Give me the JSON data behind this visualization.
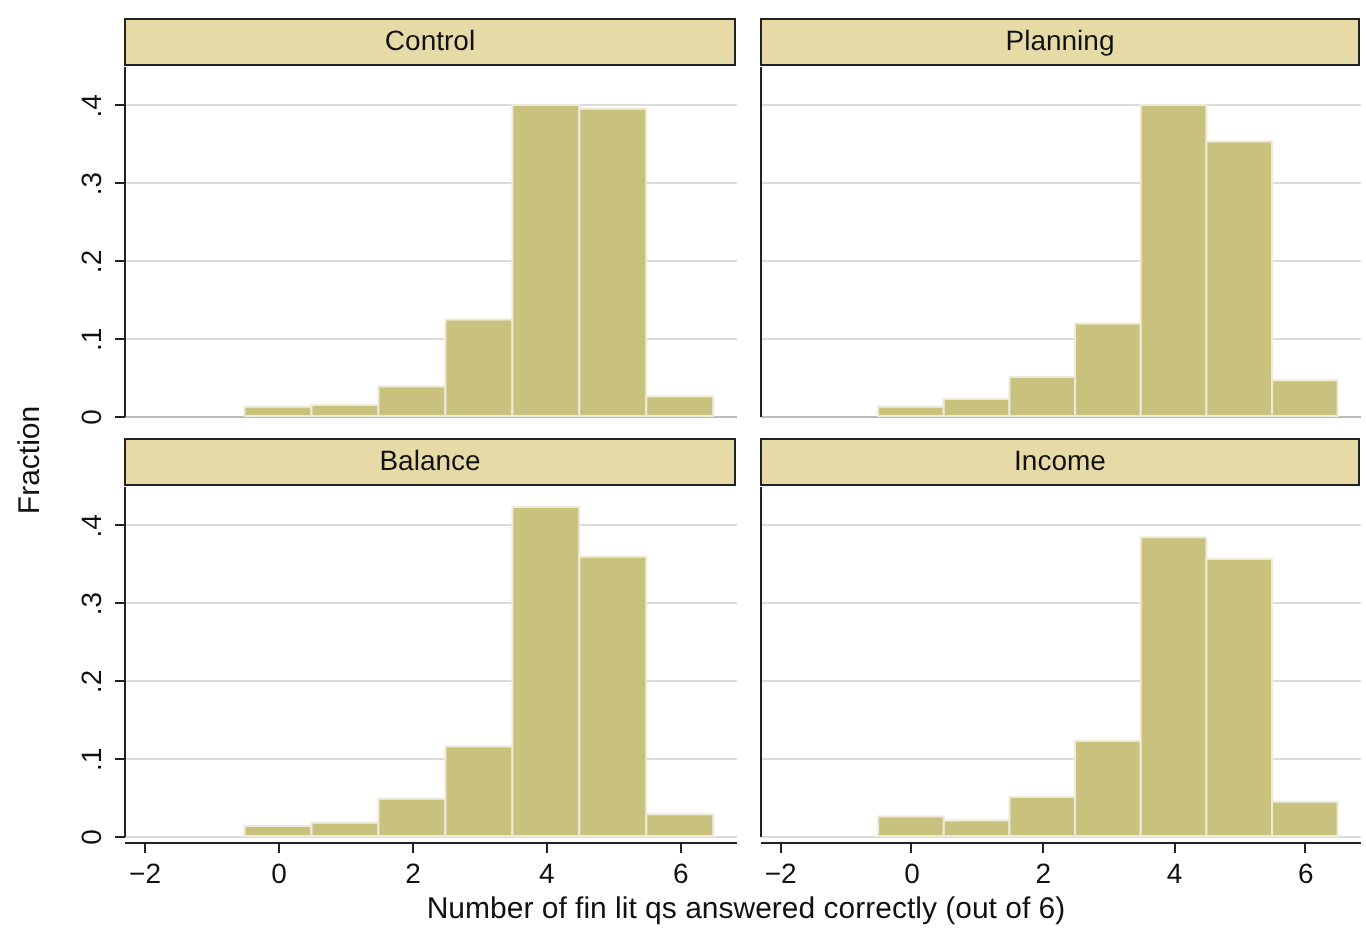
{
  "chart_data": [
    {
      "type": "histogram",
      "title": "Control",
      "ylabel": "Fraction",
      "bins": [
        -0.5,
        0.5,
        1.5,
        2.5,
        3.5,
        4.5,
        5.5,
        6.5
      ],
      "values": [
        0.012,
        0.014,
        0.038,
        0.124,
        0.4,
        0.395,
        0.025
      ],
      "color": "#c9c27f",
      "xlim": [
        -2.3,
        6.84
      ],
      "xticks": [
        -2,
        0,
        2,
        4,
        6
      ],
      "ylim": [
        0,
        0.45
      ],
      "yticks": [
        {
          "value": 0,
          "label": "0"
        },
        {
          "value": 0.1,
          "label": ".1"
        },
        {
          "value": 0.2,
          "label": ".2"
        },
        {
          "value": 0.3,
          "label": ".3"
        },
        {
          "value": 0.4,
          "label": ".4"
        }
      ],
      "grid": "y",
      "tick_labels": "y"
    },
    {
      "type": "histogram",
      "title": "Planning",
      "bins": [
        -0.5,
        0.5,
        1.5,
        2.5,
        3.5,
        4.5,
        5.5,
        6.5
      ],
      "values": [
        0.012,
        0.022,
        0.05,
        0.119,
        0.4,
        0.353,
        0.046
      ],
      "color": "#c9c27f",
      "xlim": [
        -2.3,
        6.84
      ],
      "xticks": [
        -2,
        0,
        2,
        4,
        6
      ],
      "ylim": [
        0,
        0.45
      ],
      "yticks": [
        0,
        0.1,
        0.2,
        0.3,
        0.4
      ],
      "grid": "y",
      "tick_labels": false
    },
    {
      "type": "histogram",
      "title": "Balance",
      "xlabel": "Number of fin lit qs answered correctly (out of 6)",
      "bins": [
        -0.5,
        0.5,
        1.5,
        2.5,
        3.5,
        4.5,
        5.5,
        6.5
      ],
      "values": [
        0.013,
        0.017,
        0.048,
        0.115,
        0.423,
        0.359,
        0.028
      ],
      "color": "#c9c27f",
      "xlim": [
        -2.3,
        6.84
      ],
      "xticks": [
        -2,
        0,
        2,
        4,
        6
      ],
      "ylim": [
        0,
        0.45
      ],
      "yticks": [
        {
          "value": 0,
          "label": "0"
        },
        {
          "value": 0.1,
          "label": ".1"
        },
        {
          "value": 0.2,
          "label": ".2"
        },
        {
          "value": 0.3,
          "label": ".3"
        },
        {
          "value": 0.4,
          "label": ".4"
        }
      ],
      "grid": "y"
    },
    {
      "type": "histogram",
      "title": "Income",
      "bins": [
        -0.5,
        0.5,
        1.5,
        2.5,
        3.5,
        4.5,
        5.5,
        6.5
      ],
      "values": [
        0.025,
        0.02,
        0.05,
        0.122,
        0.384,
        0.356,
        0.044
      ],
      "color": "#c9c27f",
      "xlim": [
        -2.3,
        6.84
      ],
      "xticks": [
        -2,
        0,
        2,
        4,
        6
      ],
      "ylim": [
        0,
        0.45
      ],
      "yticks": [
        0,
        0.1,
        0.2,
        0.3,
        0.4
      ],
      "grid": "y",
      "tick_labels": "x"
    }
  ]
}
